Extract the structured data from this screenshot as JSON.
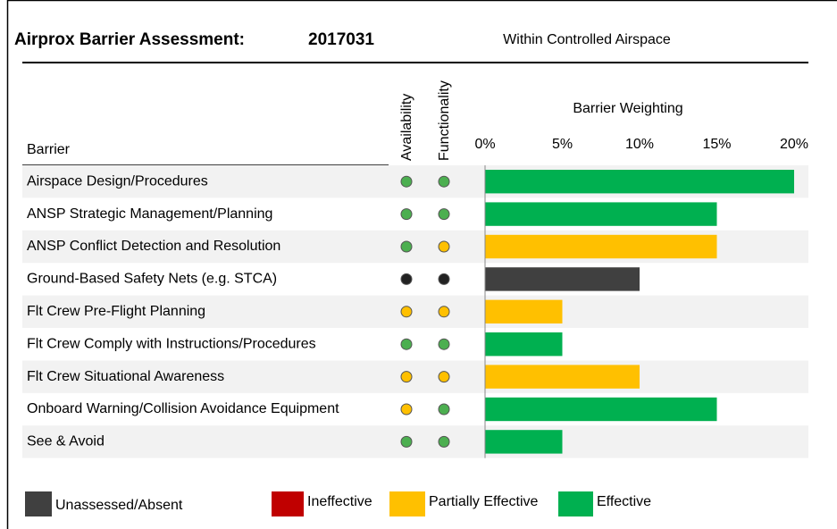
{
  "chart_data": {
    "type": "bar",
    "title": "Airprox Barrier Assessment:",
    "reference": "2017031",
    "subtitle": "Within Controlled Airspace",
    "category_header": "Barrier",
    "availability_header": "Availability",
    "functionality_header": "Functionality",
    "axis_label": "Barrier Weighting",
    "categories": [
      "Airspace Design/Procedures",
      "ANSP Strategic Management/Planning",
      "ANSP Conflict Detection and Resolution",
      "Ground-Based Safety Nets (e.g. STCA)",
      "Flt Crew Pre-Flight Planning",
      "Flt Crew Comply with Instructions/Procedures",
      "Flt Crew Situational Awareness",
      "Onboard Warning/Collision Avoidance Equipment",
      "See & Avoid"
    ],
    "values": [
      20,
      15,
      15,
      10,
      5,
      5,
      10,
      15,
      5
    ],
    "colors": [
      "#00b050",
      "#00b050",
      "#ffc000",
      "#404040",
      "#ffc000",
      "#00b050",
      "#ffc000",
      "#00b050",
      "#00b050"
    ],
    "availability_colors": [
      "#4caf50",
      "#4caf50",
      "#4caf50",
      "#222222",
      "#ffc000",
      "#4caf50",
      "#ffc000",
      "#ffc000",
      "#4caf50"
    ],
    "functionality_colors": [
      "#4caf50",
      "#4caf50",
      "#ffc000",
      "#222222",
      "#ffc000",
      "#4caf50",
      "#ffc000",
      "#4caf50",
      "#4caf50"
    ],
    "xlim": [
      0,
      20
    ],
    "xticks": [
      {
        "value": 0,
        "label": "0%"
      },
      {
        "value": 5,
        "label": "5%"
      },
      {
        "value": 10,
        "label": "10%"
      },
      {
        "value": 15,
        "label": "15%"
      },
      {
        "value": 20,
        "label": "20%"
      }
    ],
    "legend": [
      {
        "name": "Unassessed/Absent",
        "color": "#404040"
      },
      {
        "name": "Ineffective",
        "color": "#c00000"
      },
      {
        "name": "Partially Effective",
        "color": "#ffc000"
      },
      {
        "name": "Effective",
        "color": "#00b050"
      }
    ]
  }
}
